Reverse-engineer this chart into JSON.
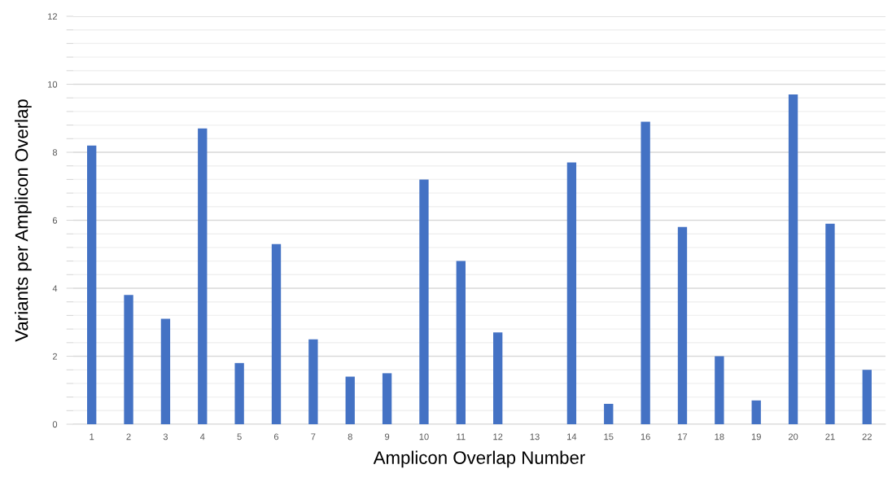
{
  "chart_data": {
    "type": "bar",
    "xlabel": "Amplicon Overlap Number",
    "ylabel": "Variants per Amplicon Overlap",
    "categories": [
      "1",
      "2",
      "3",
      "4",
      "5",
      "6",
      "7",
      "8",
      "9",
      "10",
      "11",
      "12",
      "13",
      "14",
      "15",
      "16",
      "17",
      "18",
      "19",
      "20",
      "21",
      "22"
    ],
    "values": [
      8.2,
      3.8,
      3.1,
      8.7,
      1.8,
      5.3,
      2.5,
      1.4,
      1.5,
      7.2,
      4.8,
      2.7,
      0,
      7.7,
      0.6,
      8.9,
      5.8,
      2.0,
      0.7,
      9.7,
      5.9,
      1.6
    ],
    "color": "#4472c4",
    "ylim": [
      0,
      12
    ],
    "yticks": [
      0,
      {
        "value": 0.4,
        "label": null
      },
      {
        "value": 0.8,
        "label": null
      },
      {
        "value": 1.2,
        "label": null
      },
      {
        "value": 1.6,
        "label": null
      },
      2,
      {
        "value": 2.4,
        "label": null
      },
      {
        "value": 2.8,
        "label": null
      },
      {
        "value": 3.2,
        "label": null
      },
      {
        "value": 3.6,
        "label": null
      },
      4,
      {
        "value": 4.4,
        "label": null
      },
      {
        "value": 4.8,
        "label": null
      },
      {
        "value": 5.2,
        "label": null
      },
      {
        "value": 5.6,
        "label": null
      },
      6,
      {
        "value": 6.4,
        "label": null
      },
      {
        "value": 6.8,
        "label": null
      },
      {
        "value": 7.2,
        "label": null
      },
      {
        "value": 7.6,
        "label": null
      },
      8,
      {
        "value": 8.4,
        "label": null
      },
      {
        "value": 8.8,
        "label": null
      },
      {
        "value": 9.2,
        "label": null
      },
      {
        "value": 9.6,
        "label": null
      },
      10,
      {
        "value": 10.4,
        "label": null
      },
      {
        "value": 10.8,
        "label": null
      },
      {
        "value": 11.2,
        "label": null
      },
      {
        "value": 11.6,
        "label": null
      },
      12
    ],
    "grid": "y"
  }
}
